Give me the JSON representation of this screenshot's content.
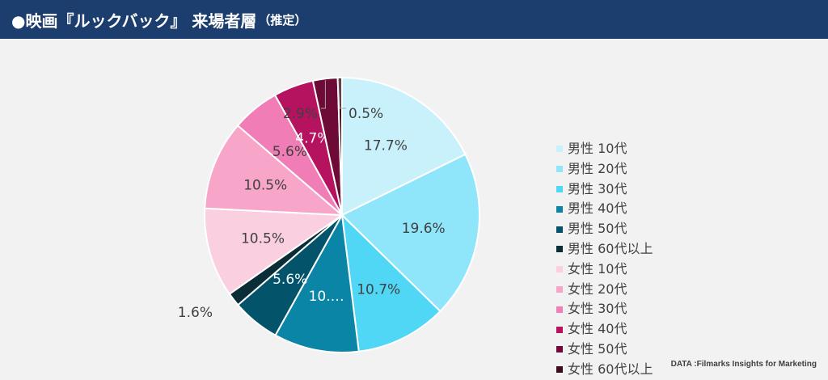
{
  "header": {
    "title_main": "●映画『ルックバック』 来場者層",
    "title_sub": "（推定）",
    "background": "#1c3e6e"
  },
  "chart_data": {
    "type": "pie",
    "title": "映画『ルックバック』 来場者層（推定）",
    "legend_position": "right",
    "categories": [
      "男性 10代",
      "男性 20代",
      "男性 30代",
      "男性 40代",
      "男性 50代",
      "男性 60代以上",
      "女性 10代",
      "女性 20代",
      "女性 30代",
      "女性 40代",
      "女性 50代",
      "女性 60代以上"
    ],
    "values": [
      17.7,
      19.6,
      10.7,
      10.0,
      5.6,
      1.6,
      10.5,
      10.5,
      5.6,
      4.7,
      2.9,
      0.5
    ],
    "labels": [
      "17.7%",
      "19.6%",
      "10.7%",
      "10.…",
      "5.6%",
      "1.6%",
      "10.5%",
      "10.5%",
      "5.6%",
      "4.7%",
      "2.9%",
      "0.5%"
    ],
    "colors": [
      "#c9f1fb",
      "#8fe6fb",
      "#4fd7f5",
      "#0a85a6",
      "#03546b",
      "#0b2d38",
      "#fad0e0",
      "#f7a5c9",
      "#f07db5",
      "#b5125f",
      "#6e0a36",
      "#3d0a1e"
    ]
  },
  "footer": {
    "source": "DATA :Filmarks Insights for Marketing"
  }
}
